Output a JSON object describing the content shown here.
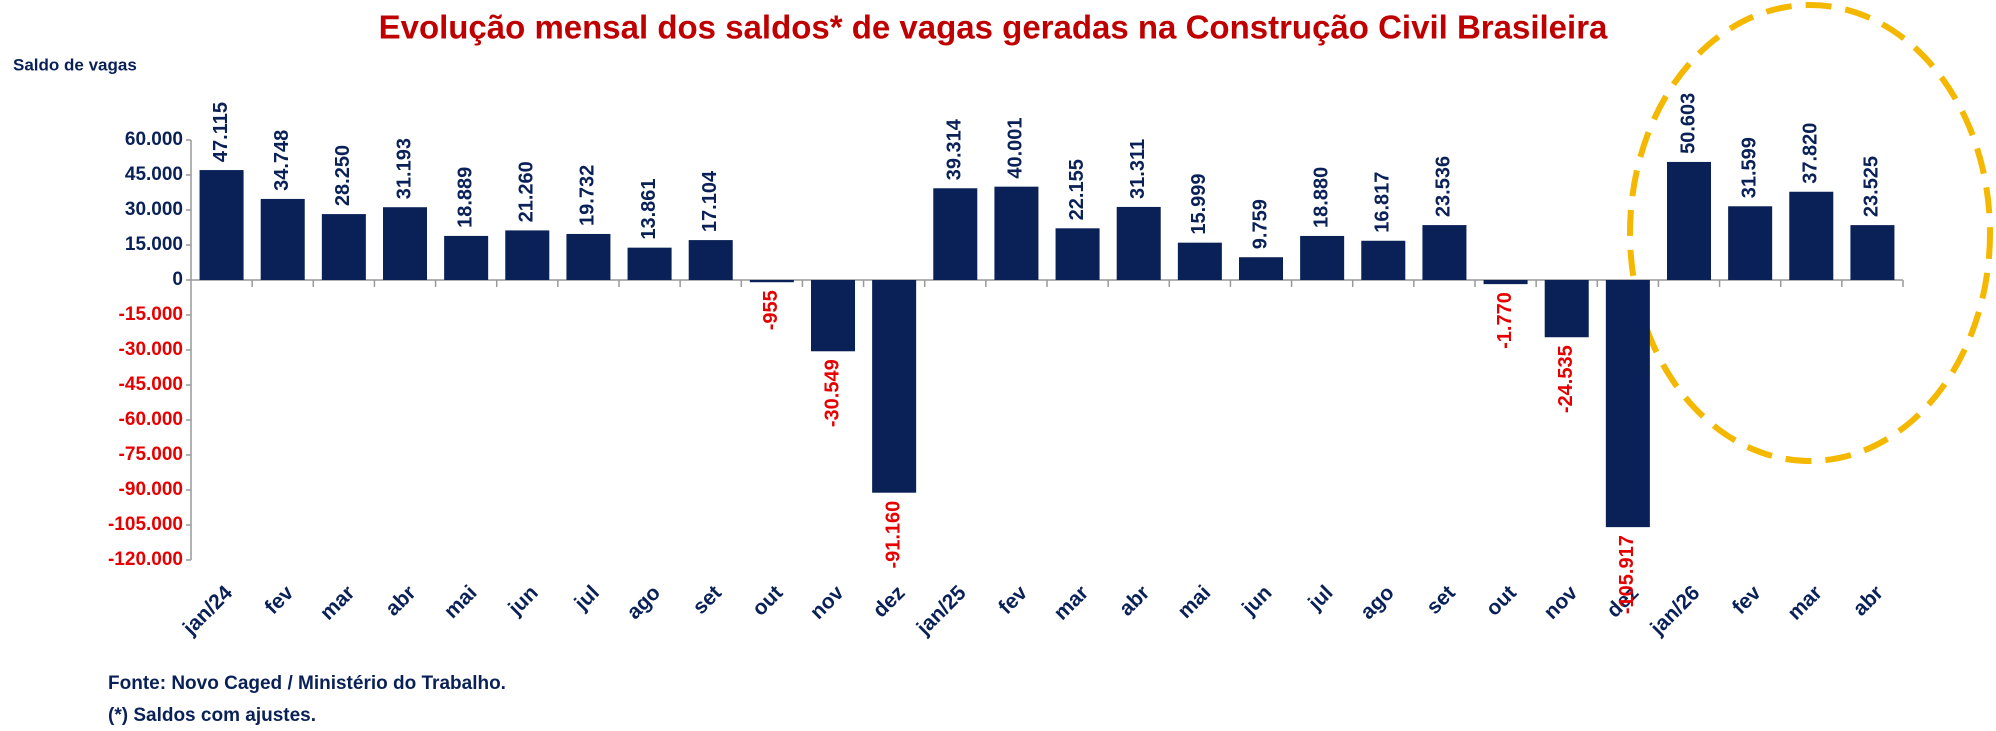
{
  "chart_data": {
    "type": "bar",
    "title": "Evolução mensal dos saldos* de vagas geradas  na Construção Civil Brasileira",
    "y_label": "Saldo de vagas",
    "source": "Fonte:  Novo Caged / Ministério do Trabalho.",
    "note": "(*) Saldos com ajustes.",
    "categories": [
      "jan/24",
      "fev",
      "mar",
      "abr",
      "mai",
      "jun",
      "jul",
      "ago",
      "set",
      "out",
      "nov",
      "dez",
      "jan/25",
      "fev",
      "mar",
      "abr",
      "mai",
      "jun",
      "jul",
      "ago",
      "set",
      "out",
      "nov",
      "dez",
      "jan/26",
      "fev",
      "mar",
      "abr"
    ],
    "values": [
      47115,
      34748,
      28250,
      31193,
      18889,
      21260,
      19732,
      13861,
      17104,
      -955,
      -30549,
      -91160,
      39314,
      40001,
      22155,
      31311,
      15999,
      9759,
      18880,
      16817,
      23536,
      -1770,
      -24535,
      -105917,
      50603,
      31599,
      37820,
      23525
    ],
    "value_labels": [
      "47.115",
      "34.748",
      "28.250",
      "31.193",
      "18.889",
      "21.260",
      "19.732",
      "13.861",
      "17.104",
      "-955",
      "-30.549",
      "-91.160",
      "39.314",
      "40.001",
      "22.155",
      "31.311",
      "15.999",
      "9.759",
      "18.880",
      "16.817",
      "23.536",
      "-1.770",
      "-24.535",
      "-105.917",
      "50.603",
      "31.599",
      "37.820",
      "23.525"
    ],
    "color": "#0a2158",
    "negative_color": "#e60000",
    "ylim": [
      -120000,
      60000
    ],
    "yticks": [
      {
        "value": 60000,
        "label": "60.000"
      },
      {
        "value": 45000,
        "label": "45.000"
      },
      {
        "value": 30000,
        "label": "30.000"
      },
      {
        "value": 15000,
        "label": "15.000"
      },
      0,
      {
        "value": -15000,
        "label": "-15.000"
      },
      {
        "value": -30000,
        "label": "-30.000"
      },
      {
        "value": -45000,
        "label": "-45.000"
      },
      {
        "value": -60000,
        "label": "-60.000"
      },
      {
        "value": -75000,
        "label": "-75.000"
      },
      {
        "value": -90000,
        "label": "-90.000"
      },
      {
        "value": -105000,
        "label": "-105.000"
      },
      {
        "value": -120000,
        "label": "-120.000"
      }
    ],
    "grid": false
  }
}
